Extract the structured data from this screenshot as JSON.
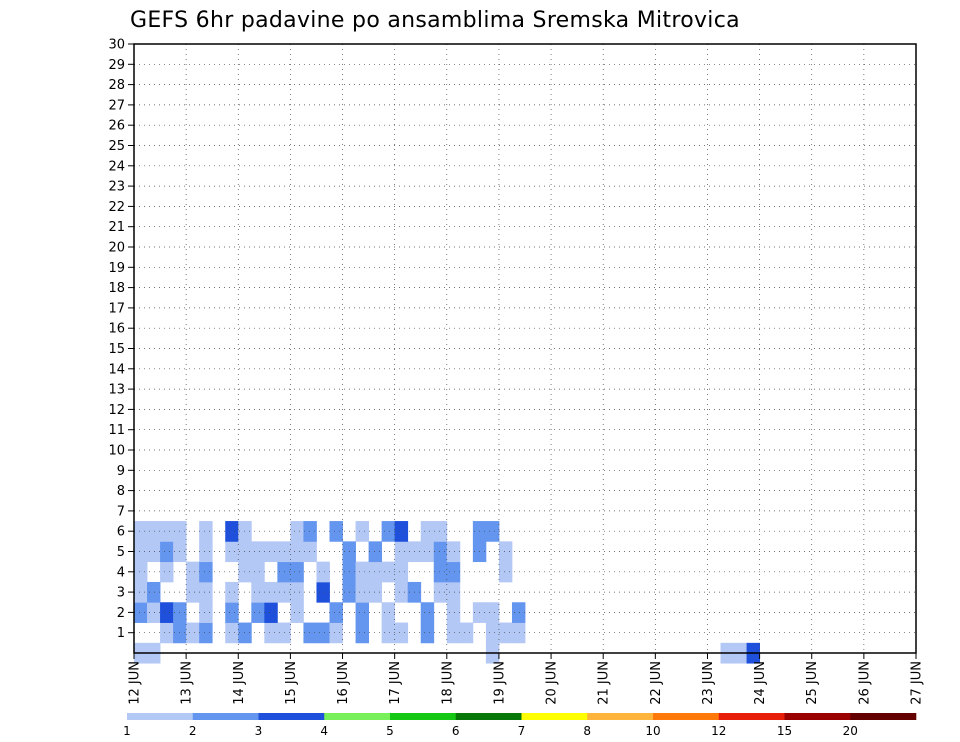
{
  "chart_data": {
    "type": "heatmap",
    "title": "GEFS 6hr padavine po ansamblima Sremska Mitrovica",
    "y_ticks": [
      "1",
      "2",
      "3",
      "4",
      "5",
      "6",
      "7",
      "8",
      "9",
      "10",
      "11",
      "12",
      "13",
      "14",
      "15",
      "16",
      "17",
      "18",
      "19",
      "20",
      "21",
      "22",
      "23",
      "24",
      "25",
      "26",
      "27",
      "28",
      "29",
      "30"
    ],
    "x_ticks": [
      "12 JUN",
      "13 JUN",
      "14 JUN",
      "15 JUN",
      "16 JUN",
      "17 JUN",
      "18 JUN",
      "19 JUN",
      "20 JUN",
      "21 JUN",
      "22 JUN",
      "23 JUN",
      "24 JUN",
      "25 JUN",
      "26 JUN",
      "27 JUN"
    ],
    "xlim_steps": [
      0,
      60
    ],
    "ylim_members": [
      0,
      30
    ],
    "grid": "dotted",
    "colorbar": {
      "tick_labels": [
        "1",
        "2",
        "3",
        "4",
        "5",
        "6",
        "7",
        "8",
        "10",
        "12",
        "15",
        "20"
      ],
      "colors": [
        "#b4c8f5",
        "#6496f0",
        "#1e50dc",
        "#78f05a",
        "#14c814",
        "#087808",
        "#ffff00",
        "#ffb43c",
        "#ff780a",
        "#e61e0a",
        "#9b0000",
        "#640000"
      ]
    },
    "cells": [
      [
        0.5,
        0,
        0
      ],
      [
        1.5,
        0,
        0
      ],
      [
        27.5,
        0,
        0
      ],
      [
        45.5,
        0,
        0
      ],
      [
        46.5,
        0,
        0
      ],
      [
        47.5,
        0,
        2
      ],
      [
        2.5,
        1,
        0
      ],
      [
        3.5,
        1,
        1
      ],
      [
        4.5,
        1,
        0
      ],
      [
        5.5,
        1,
        1
      ],
      [
        7.5,
        1,
        0
      ],
      [
        8.5,
        1,
        1
      ],
      [
        10.5,
        1,
        0
      ],
      [
        11.5,
        1,
        0
      ],
      [
        13.5,
        1,
        1
      ],
      [
        14.5,
        1,
        1
      ],
      [
        15.5,
        1,
        0
      ],
      [
        17.5,
        1,
        1
      ],
      [
        19.5,
        1,
        0
      ],
      [
        20.5,
        1,
        0
      ],
      [
        22.5,
        1,
        1
      ],
      [
        24.5,
        1,
        0
      ],
      [
        25.5,
        1,
        0
      ],
      [
        27.5,
        1,
        0
      ],
      [
        28.5,
        1,
        0
      ],
      [
        29.5,
        1,
        0
      ],
      [
        0.5,
        2,
        1
      ],
      [
        1.5,
        2,
        0
      ],
      [
        2.5,
        2,
        2
      ],
      [
        3.5,
        2,
        1
      ],
      [
        5.5,
        2,
        0
      ],
      [
        7.5,
        2,
        1
      ],
      [
        9.5,
        2,
        1
      ],
      [
        10.5,
        2,
        2
      ],
      [
        12.5,
        2,
        0
      ],
      [
        15.5,
        2,
        1
      ],
      [
        17.5,
        2,
        1
      ],
      [
        19.5,
        2,
        0
      ],
      [
        22.5,
        2,
        1
      ],
      [
        24.5,
        2,
        0
      ],
      [
        26.5,
        2,
        0
      ],
      [
        27.5,
        2,
        0
      ],
      [
        29.5,
        2,
        1
      ],
      [
        0.5,
        3,
        0
      ],
      [
        1.5,
        3,
        1
      ],
      [
        4.5,
        3,
        0
      ],
      [
        5.5,
        3,
        0
      ],
      [
        7.5,
        3,
        0
      ],
      [
        9.5,
        3,
        0
      ],
      [
        10.5,
        3,
        0
      ],
      [
        11.5,
        3,
        0
      ],
      [
        12.5,
        3,
        0
      ],
      [
        14.5,
        3,
        2
      ],
      [
        16.5,
        3,
        1
      ],
      [
        17.5,
        3,
        0
      ],
      [
        18.5,
        3,
        0
      ],
      [
        20.5,
        3,
        0
      ],
      [
        21.5,
        3,
        1
      ],
      [
        23.5,
        3,
        0
      ],
      [
        24.5,
        3,
        0
      ],
      [
        0.5,
        4,
        0
      ],
      [
        2.5,
        4,
        0
      ],
      [
        4.5,
        4,
        0
      ],
      [
        5.5,
        4,
        1
      ],
      [
        8.5,
        4,
        0
      ],
      [
        9.5,
        4,
        0
      ],
      [
        11.5,
        4,
        1
      ],
      [
        12.5,
        4,
        1
      ],
      [
        14.5,
        4,
        0
      ],
      [
        16.5,
        4,
        1
      ],
      [
        17.5,
        4,
        0
      ],
      [
        18.5,
        4,
        0
      ],
      [
        19.5,
        4,
        0
      ],
      [
        20.5,
        4,
        0
      ],
      [
        23.5,
        4,
        1
      ],
      [
        24.5,
        4,
        1
      ],
      [
        28.5,
        4,
        0
      ],
      [
        0.5,
        5,
        0
      ],
      [
        1.5,
        5,
        0
      ],
      [
        2.5,
        5,
        1
      ],
      [
        3.5,
        5,
        0
      ],
      [
        5.5,
        5,
        0
      ],
      [
        7.5,
        5,
        0
      ],
      [
        8.5,
        5,
        0
      ],
      [
        9.5,
        5,
        0
      ],
      [
        10.5,
        5,
        0
      ],
      [
        11.5,
        5,
        0
      ],
      [
        12.5,
        5,
        0
      ],
      [
        13.5,
        5,
        0
      ],
      [
        16.5,
        5,
        1
      ],
      [
        18.5,
        5,
        1
      ],
      [
        20.5,
        5,
        0
      ],
      [
        21.5,
        5,
        0
      ],
      [
        22.5,
        5,
        0
      ],
      [
        23.5,
        5,
        1
      ],
      [
        24.5,
        5,
        0
      ],
      [
        26.5,
        5,
        1
      ],
      [
        28.5,
        5,
        0
      ],
      [
        0.5,
        6,
        0
      ],
      [
        1.5,
        6,
        0
      ],
      [
        2.5,
        6,
        0
      ],
      [
        3.5,
        6,
        0
      ],
      [
        5.5,
        6,
        0
      ],
      [
        7.5,
        6,
        2
      ],
      [
        8.5,
        6,
        0
      ],
      [
        12.5,
        6,
        0
      ],
      [
        13.5,
        6,
        1
      ],
      [
        15.5,
        6,
        1
      ],
      [
        17.5,
        6,
        0
      ],
      [
        19.5,
        6,
        1
      ],
      [
        20.5,
        6,
        2
      ],
      [
        22.5,
        6,
        0
      ],
      [
        23.5,
        6,
        0
      ],
      [
        26.5,
        6,
        1
      ],
      [
        27.5,
        6,
        1
      ]
    ]
  }
}
